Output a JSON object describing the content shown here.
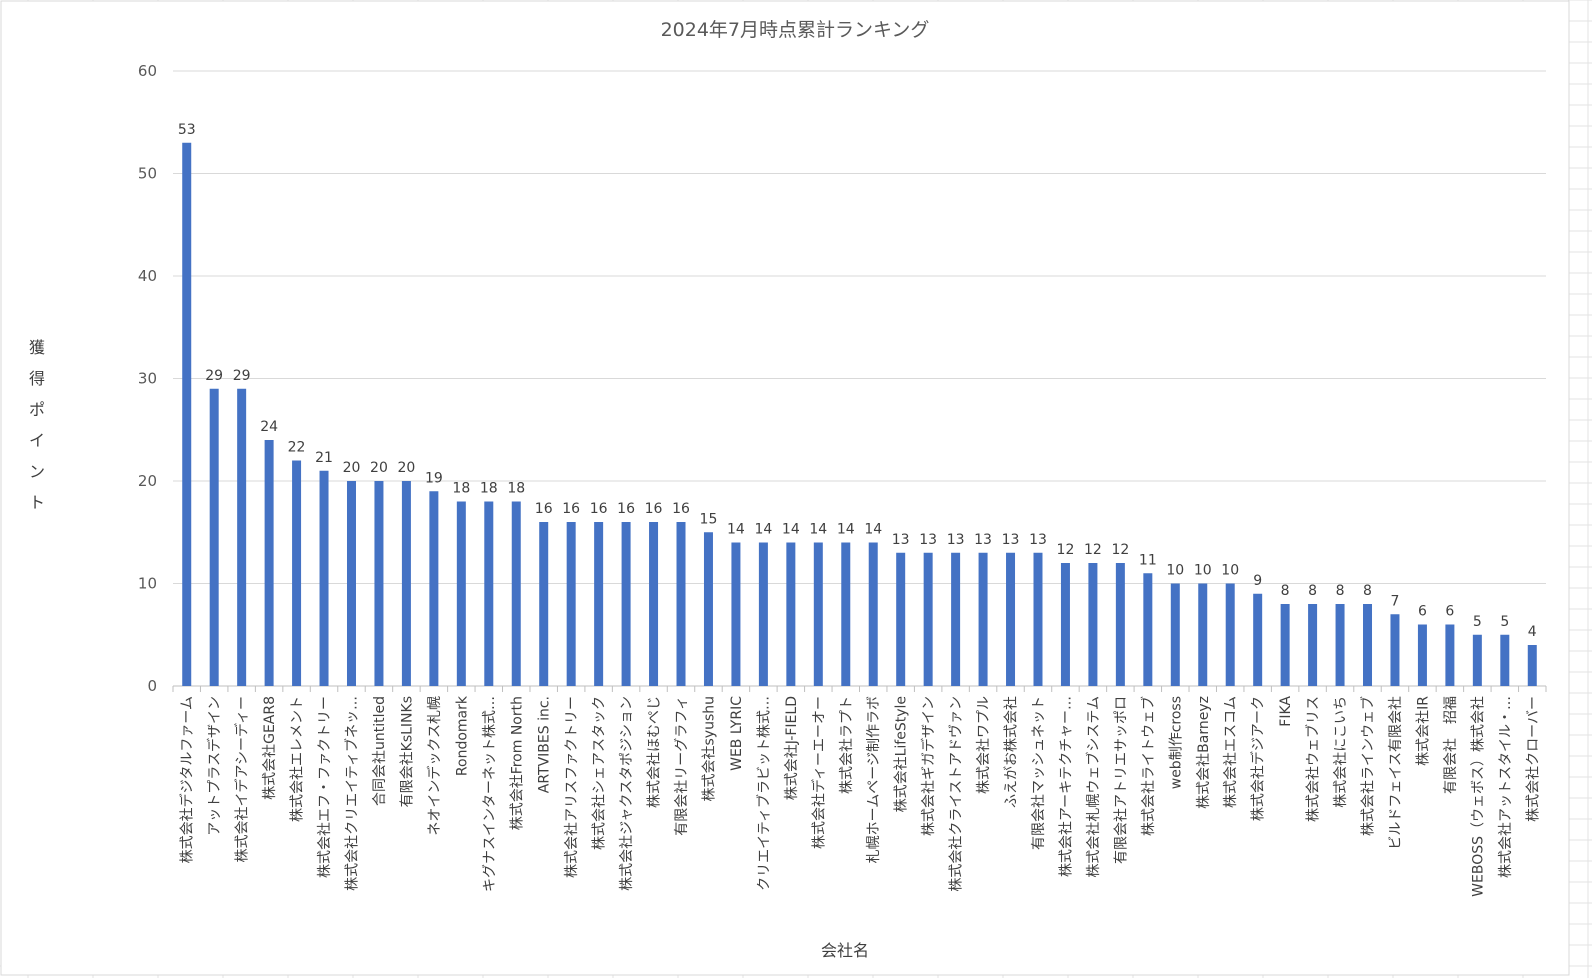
{
  "chart_data": {
    "type": "bar",
    "title": "2024年7月時点累計ランキング",
    "xlabel": "会社名",
    "ylabel": "獲得ポイント",
    "ylim": [
      0,
      60
    ],
    "y_ticks": [
      0,
      10,
      20,
      30,
      40,
      50,
      60
    ],
    "grid": true,
    "legend": "none",
    "bar_color": "#4472C4",
    "categories": [
      "株式会社デジタルファーム",
      "アットプラスデザイン",
      "株式会社イデアシーディー",
      "株式会社GEAR8",
      "株式会社エレメント",
      "株式会社エフ・ファクトリー",
      "株式会社クリエイティブネッ…",
      "合同会社untitled",
      "有限会社KsLINKs",
      "ネオインデックス札幌",
      "Rondomark",
      "キグナスインターネット株式…",
      "株式会社From North",
      "ARTVIBES inc.",
      "株式会社アリスファクトリー",
      "株式会社シェアスタック",
      "株式会社ジャクスタポジション",
      "株式会社ほむぺじ",
      "有限会社リーグラフィ",
      "株式会社syushu",
      "WEB LYRIC",
      "クリエイティブラビット株式…",
      "株式会社J-FIELD",
      "株式会社ディーエーオー",
      "株式会社ラプト",
      "札幌ホームページ制作ラボ",
      "株式会社LifeStyle",
      "株式会社ギガデザイン",
      "株式会社クライストアドヴァン",
      "株式会社ワプル",
      "ふえがお株式会社",
      "有限会社マッシュネット",
      "株式会社アーキテクチャー…",
      "株式会社札幌ウェブシステム",
      "有限会社アトリエサッポロ",
      "株式会社ライトウェブ",
      "web制作cross",
      "株式会社Barneyz",
      "株式会社エスコム",
      "株式会社デジアーク",
      "FIKA",
      "株式会社ウェブリス",
      "株式会社にこいち",
      "株式会社ラインウェブ",
      "ビルドフェイス有限会社",
      "株式会社IR",
      "有限会社　招福",
      "WEBOSS（ウェボス）株式会社",
      "株式会社アットスタイル・…",
      "株式会社クローバー"
    ],
    "values": [
      53,
      29,
      29,
      24,
      22,
      21,
      20,
      20,
      20,
      19,
      18,
      18,
      18,
      16,
      16,
      16,
      16,
      16,
      16,
      15,
      14,
      14,
      14,
      14,
      14,
      14,
      13,
      13,
      13,
      13,
      13,
      13,
      12,
      12,
      12,
      11,
      10,
      10,
      10,
      9,
      8,
      8,
      8,
      8,
      7,
      6,
      6,
      5,
      5,
      4
    ],
    "data_labels": [
      "53",
      "29",
      "29",
      "24",
      "22",
      "21",
      "20",
      "20",
      "20",
      "19",
      "18",
      "18",
      "18",
      "16",
      "16",
      "16",
      "16",
      "16",
      "16",
      "15",
      "14",
      "14",
      "14",
      "14",
      "14",
      "14",
      "13",
      "13",
      "13",
      "13",
      "13",
      "13",
      "12",
      "12",
      "12",
      "11",
      "10",
      "10",
      "10",
      "9",
      "8",
      "8",
      "8",
      "8",
      "7",
      "6",
      "6",
      "5",
      "5",
      "4"
    ]
  }
}
